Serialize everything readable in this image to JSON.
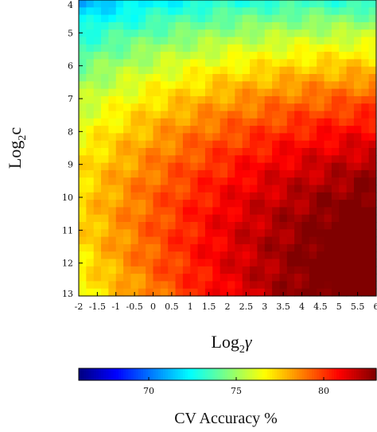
{
  "chart_data": {
    "type": "heatmap",
    "title": "",
    "xlabel": "Log₂γ",
    "ylabel": "Log₂c",
    "x_range": [
      -2,
      6
    ],
    "y_range": [
      4,
      13
    ],
    "x_ticks": [
      "-2",
      "-1.5",
      "-1",
      "-0.5",
      "0",
      "0.5",
      "1",
      "1.5",
      "2",
      "2.5",
      "3",
      "3.5",
      "4",
      "4.5",
      "5",
      "5.5",
      "6"
    ],
    "y_ticks": [
      "4",
      "5",
      "6",
      "7",
      "8",
      "9",
      "10",
      "11",
      "12",
      "13"
    ],
    "grid_resolution": [
      40,
      40
    ],
    "colormap": "jet",
    "colorbar": {
      "label": "CV Accuracy %",
      "range": [
        66,
        83
      ],
      "ticks": [
        "70",
        "75",
        "80"
      ],
      "orientation": "horizontal"
    },
    "sample_values": [
      {
        "x": -2,
        "y": 4,
        "value": 66
      },
      {
        "x": -2,
        "y": 13,
        "value": 79
      },
      {
        "x": 6,
        "y": 4,
        "value": 76
      },
      {
        "x": 4,
        "y": 12.5,
        "value": 82.5
      },
      {
        "x": 6,
        "y": 13,
        "value": 81
      },
      {
        "x": 0,
        "y": 8,
        "value": 77
      },
      {
        "x": 2,
        "y": 6,
        "value": 76
      }
    ]
  }
}
